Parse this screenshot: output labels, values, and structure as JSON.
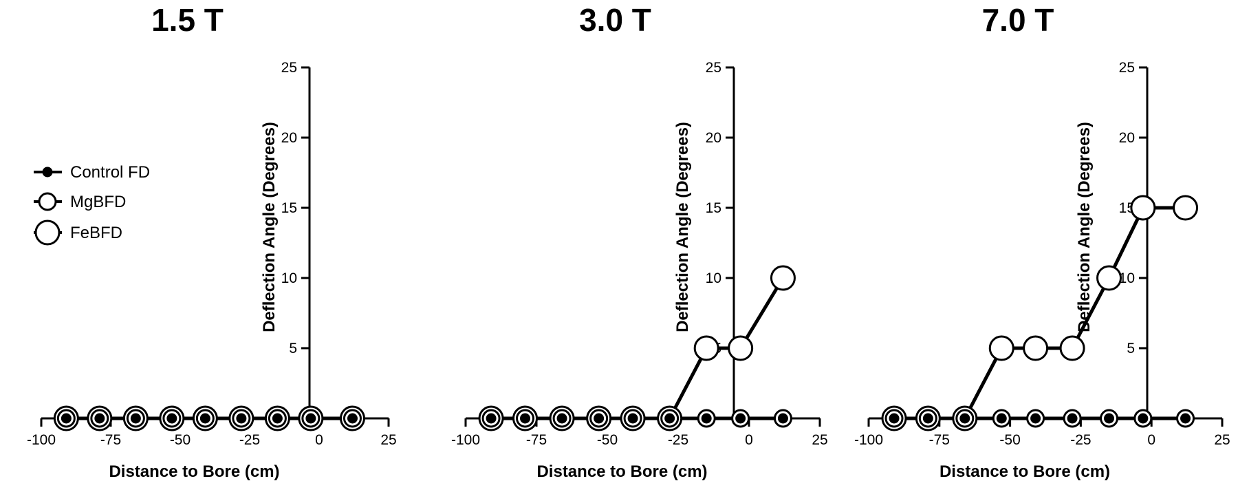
{
  "chart_data": [
    {
      "type": "line",
      "title": "1.5 T",
      "xlabel": "Distance to Bore (cm)",
      "ylabel": "Deflection Angle (Degrees)",
      "xlim": [
        -100,
        25
      ],
      "ylim": [
        0,
        25
      ],
      "xticks": [
        -100,
        -75,
        -50,
        -25,
        0,
        25
      ],
      "yticks": [
        5,
        10,
        15,
        20,
        25
      ],
      "grid": false,
      "legend": "left",
      "series": [
        {
          "name": "Control FD",
          "x": [
            -91,
            -79,
            -66,
            -53,
            -41,
            -28,
            -15,
            -3,
            12
          ],
          "values": [
            0,
            0,
            0,
            0,
            0,
            0,
            0,
            0,
            0
          ]
        },
        {
          "name": "MgBFD",
          "x": [
            -91,
            -79,
            -66,
            -53,
            -41,
            -28,
            -15,
            -3,
            12
          ],
          "values": [
            0,
            0,
            0,
            0,
            0,
            0,
            0,
            0,
            0
          ]
        },
        {
          "name": "FeBFD",
          "x": [
            -91,
            -79,
            -66,
            -53,
            -41,
            -28,
            -15,
            -3,
            12
          ],
          "values": [
            0,
            0,
            0,
            0,
            0,
            0,
            0,
            0,
            0
          ]
        }
      ]
    },
    {
      "type": "line",
      "title": "3.0 T",
      "xlabel": "Distance to Bore (cm)",
      "ylabel": "Deflection Angle (Degrees)",
      "xlim": [
        -100,
        25
      ],
      "ylim": [
        0,
        25
      ],
      "xticks": [
        -100,
        -75,
        -50,
        -25,
        0,
        25
      ],
      "yticks": [
        5,
        10,
        15,
        20,
        25
      ],
      "grid": false,
      "series": [
        {
          "name": "Control FD",
          "x": [
            -91,
            -79,
            -66,
            -53,
            -41,
            -28,
            -15,
            -3,
            12
          ],
          "values": [
            0,
            0,
            0,
            0,
            0,
            0,
            0,
            0,
            0
          ]
        },
        {
          "name": "MgBFD",
          "x": [
            -91,
            -79,
            -66,
            -53,
            -41,
            -28,
            -15,
            -3,
            12
          ],
          "values": [
            0,
            0,
            0,
            0,
            0,
            0,
            0,
            0,
            0
          ]
        },
        {
          "name": "FeBFD",
          "x": [
            -91,
            -79,
            -66,
            -53,
            -41,
            -28,
            -15,
            -3,
            12
          ],
          "values": [
            0,
            0,
            0,
            0,
            0,
            0,
            5,
            5,
            10
          ]
        }
      ]
    },
    {
      "type": "line",
      "title": "7.0 T",
      "xlabel": "Distance to Bore (cm)",
      "ylabel": "Deflection Angle (Degrees)",
      "xlim": [
        -100,
        25
      ],
      "ylim": [
        0,
        25
      ],
      "xticks": [
        -100,
        -75,
        -50,
        -25,
        0,
        25
      ],
      "yticks": [
        5,
        10,
        15,
        20,
        25
      ],
      "grid": false,
      "series": [
        {
          "name": "Control FD",
          "x": [
            -91,
            -79,
            -66,
            -53,
            -41,
            -28,
            -15,
            -3,
            12
          ],
          "values": [
            0,
            0,
            0,
            0,
            0,
            0,
            0,
            0,
            0
          ]
        },
        {
          "name": "MgBFD",
          "x": [
            -91,
            -79,
            -66,
            -53,
            -41,
            -28,
            -15,
            -3,
            12
          ],
          "values": [
            0,
            0,
            0,
            0,
            0,
            0,
            0,
            0,
            0
          ]
        },
        {
          "name": "FeBFD",
          "x": [
            -91,
            -79,
            -66,
            -53,
            -41,
            -28,
            -15,
            -3,
            12
          ],
          "values": [
            0,
            0,
            0,
            5,
            5,
            5,
            10,
            15,
            15
          ]
        }
      ]
    }
  ],
  "legend": {
    "items": [
      {
        "label": "Control FD",
        "marker": "small-filled-circle"
      },
      {
        "label": "MgBFD",
        "marker": "medium-open-circle"
      },
      {
        "label": "FeBFD",
        "marker": "large-open-circle"
      }
    ]
  },
  "colors": {
    "line": "#000000",
    "background": "#ffffff"
  }
}
